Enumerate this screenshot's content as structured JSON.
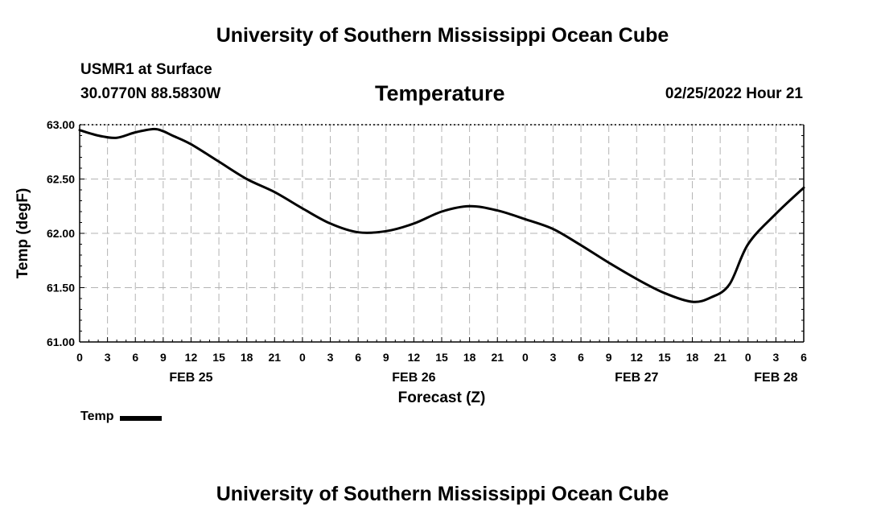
{
  "header": {
    "main_title": "University of Southern Mississippi Ocean Cube",
    "station_name": "USMR1 at Surface",
    "coordinates": "30.0770N  88.5830W",
    "chart_title": "Temperature",
    "date_label": "02/25/2022 Hour 21"
  },
  "footer": {
    "title": "University of Southern Mississippi Ocean Cube"
  },
  "legend": {
    "label": "Temp",
    "color": "#000000"
  },
  "chart_data": {
    "type": "line",
    "title": "Temperature",
    "xlabel": "Forecast (Z)",
    "ylabel": "Temp (degF)",
    "ylim": [
      61.0,
      63.0
    ],
    "xlim_hours": [
      0,
      78
    ],
    "y_ticks": [
      "61.00",
      "61.50",
      "62.00",
      "62.50",
      "63.00"
    ],
    "y_tick_values": [
      61.0,
      61.5,
      62.0,
      62.5,
      63.0
    ],
    "x_tick_labels": [
      "0",
      "3",
      "6",
      "9",
      "12",
      "15",
      "18",
      "21",
      "0",
      "3",
      "6",
      "9",
      "12",
      "15",
      "18",
      "21",
      "0",
      "3",
      "6",
      "9",
      "12",
      "15",
      "18",
      "21",
      "0",
      "3",
      "6"
    ],
    "date_labels": [
      {
        "label": "FEB 25",
        "hour": 12
      },
      {
        "label": "FEB 26",
        "hour": 36
      },
      {
        "label": "FEB 27",
        "hour": 60
      },
      {
        "label": "FEB 28",
        "hour": 75
      }
    ],
    "grid": true,
    "line_color": "#000000",
    "series": [
      {
        "name": "Temp",
        "x": [
          0,
          2,
          4,
          6,
          8,
          9,
          10,
          12,
          15,
          18,
          21,
          24,
          27,
          30,
          33,
          36,
          39,
          42,
          45,
          48,
          51,
          54,
          57,
          60,
          63,
          66,
          68,
          70,
          72,
          75,
          78
        ],
        "values": [
          62.95,
          62.9,
          62.88,
          62.93,
          62.96,
          62.94,
          62.9,
          62.82,
          62.66,
          62.5,
          62.38,
          62.23,
          62.09,
          62.01,
          62.02,
          62.09,
          62.2,
          62.25,
          62.21,
          62.13,
          62.04,
          61.89,
          61.73,
          61.58,
          61.45,
          61.37,
          61.41,
          61.53,
          61.9,
          62.18,
          62.42
        ]
      }
    ]
  }
}
